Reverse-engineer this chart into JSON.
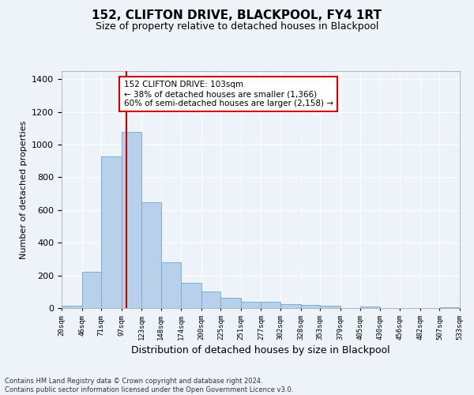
{
  "title": "152, CLIFTON DRIVE, BLACKPOOL, FY4 1RT",
  "subtitle": "Size of property relative to detached houses in Blackpool",
  "xlabel": "Distribution of detached houses by size in Blackpool",
  "ylabel": "Number of detached properties",
  "bar_color": "#b8d0ea",
  "bar_edge_color": "#7aafd4",
  "background_color": "#eef2f9",
  "grid_color": "#ffffff",
  "vline_x": 103,
  "vline_color": "#cc0000",
  "annotation_text": "152 CLIFTON DRIVE: 103sqm\n← 38% of detached houses are smaller (1,366)\n60% of semi-detached houses are larger (2,158) →",
  "annotation_box_facecolor": "#ffffff",
  "annotation_box_edgecolor": "#cc0000",
  "footnote": "Contains HM Land Registry data © Crown copyright and database right 2024.\nContains public sector information licensed under the Open Government Licence v3.0.",
  "bin_edges": [
    20,
    46,
    71,
    97,
    123,
    148,
    174,
    200,
    225,
    251,
    277,
    302,
    328,
    353,
    379,
    405,
    430,
    456,
    482,
    507,
    533
  ],
  "bar_heights": [
    15,
    220,
    930,
    1080,
    650,
    280,
    155,
    100,
    65,
    40,
    38,
    25,
    18,
    15,
    0,
    12,
    0,
    0,
    0,
    5
  ],
  "ylim": [
    0,
    1450
  ],
  "yticks": [
    0,
    200,
    400,
    600,
    800,
    1000,
    1200,
    1400
  ]
}
